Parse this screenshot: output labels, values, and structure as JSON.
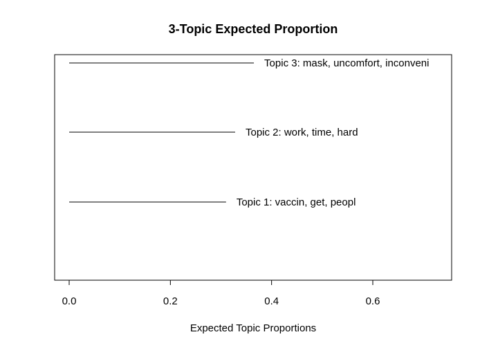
{
  "chart_data": {
    "type": "bar",
    "title": "3-Topic Expected Proportion",
    "xlabel": "Expected Topic Proportions",
    "ylabel": "",
    "xlim": [
      -0.03,
      0.75
    ],
    "xticks": [
      "0.0",
      "0.2",
      "0.4",
      "0.6"
    ],
    "tick_values": [
      0.0,
      0.2,
      0.4,
      0.6
    ],
    "orientation": "horizontal",
    "grid": false,
    "categories": [
      "Topic 1: vaccin, get, peopl",
      "Topic 2: work, time, hard",
      "Topic 3: mask, uncomfort, inconveni"
    ],
    "values": [
      0.31,
      0.328,
      0.365
    ]
  }
}
